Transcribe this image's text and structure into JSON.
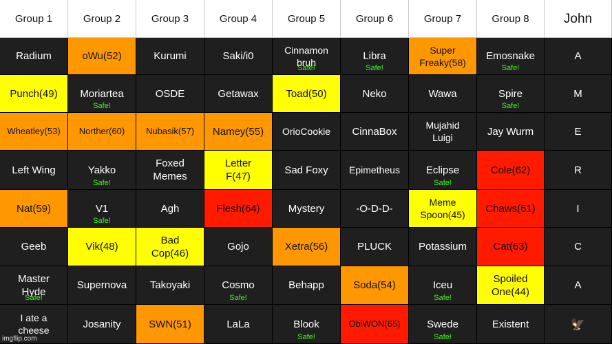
{
  "headers": [
    "Group 1",
    "Group 2",
    "Group 3",
    "Group 4",
    "Group 5",
    "Group 6",
    "Group 7",
    "Group 8",
    "John"
  ],
  "rows": [
    [
      {
        "name": "Radium",
        "color": "dark"
      },
      {
        "name": "oWu(52)",
        "color": "orange"
      },
      {
        "name": "Kurumi",
        "color": "dark"
      },
      {
        "name": "Saki/i0",
        "color": "dark"
      },
      {
        "name": "Cinnamon\nbruh",
        "color": "dark",
        "safe": "Safe!",
        "size": "mid"
      },
      {
        "name": "Libra",
        "color": "dark",
        "safe": "Safe!"
      },
      {
        "name": "Super\nFreaky(58)",
        "color": "orange",
        "size": "mid"
      },
      {
        "name": "Emosnake",
        "color": "dark",
        "safe": "Safe!"
      },
      {
        "name": "A",
        "color": "dark"
      }
    ],
    [
      {
        "name": "Punch(49)",
        "color": "yellow"
      },
      {
        "name": "Moriartea",
        "color": "dark",
        "safe": "Safe!"
      },
      {
        "name": "OSDE",
        "color": "dark"
      },
      {
        "name": "Getawax",
        "color": "dark"
      },
      {
        "name": "Toad(50)",
        "color": "yellow"
      },
      {
        "name": "Neko",
        "color": "dark"
      },
      {
        "name": "Wawa",
        "color": "dark"
      },
      {
        "name": "Spire",
        "color": "dark",
        "safe": "Safe!"
      },
      {
        "name": "M",
        "color": "dark"
      }
    ],
    [
      {
        "name": "Wheatley(53)",
        "color": "orange",
        "size": "small"
      },
      {
        "name": "Norther(60)",
        "color": "orange",
        "size": "small"
      },
      {
        "name": "Nubasik(57)",
        "color": "orange",
        "size": "small"
      },
      {
        "name": "Namey(55)",
        "color": "orange"
      },
      {
        "name": "OrioCookie",
        "color": "dark",
        "size": "mid"
      },
      {
        "name": "CinnaBox",
        "color": "dark"
      },
      {
        "name": "Mujahid\nLuigi",
        "color": "dark",
        "size": "mid"
      },
      {
        "name": "Jay Wurm",
        "color": "dark"
      },
      {
        "name": "E",
        "color": "dark"
      }
    ],
    [
      {
        "name": "Left Wing",
        "color": "dark"
      },
      {
        "name": "Yakko",
        "color": "dark",
        "safe": "Safe!"
      },
      {
        "name": "Foxed\nMemes",
        "color": "dark"
      },
      {
        "name": "Letter\nF(47)",
        "color": "yellow"
      },
      {
        "name": "Sad Foxy",
        "color": "dark"
      },
      {
        "name": "Epimetheus",
        "color": "dark",
        "size": "mid"
      },
      {
        "name": "Eclipse",
        "color": "dark",
        "safe": "Safe!"
      },
      {
        "name": "Cole(62)",
        "color": "red"
      },
      {
        "name": "R",
        "color": "dark"
      }
    ],
    [
      {
        "name": "Nat(59)",
        "color": "orange"
      },
      {
        "name": "V1",
        "color": "dark",
        "safe": "Safe!"
      },
      {
        "name": "Agh",
        "color": "dark"
      },
      {
        "name": "Flesh(64)",
        "color": "red"
      },
      {
        "name": "Mystery",
        "color": "dark"
      },
      {
        "name": "-O-D-D-",
        "color": "dark"
      },
      {
        "name": "Meme\nSpoon(45)",
        "color": "yellow",
        "size": "mid"
      },
      {
        "name": "Chaws(61)",
        "color": "red"
      },
      {
        "name": "I",
        "color": "dark"
      }
    ],
    [
      {
        "name": "Geeb",
        "color": "dark"
      },
      {
        "name": "Vik(48)",
        "color": "yellow"
      },
      {
        "name": "Bad\nCop(46)",
        "color": "yellow"
      },
      {
        "name": "Gojo",
        "color": "dark"
      },
      {
        "name": "Xetra(56)",
        "color": "orange"
      },
      {
        "name": "PLUCK",
        "color": "dark"
      },
      {
        "name": "Potassium",
        "color": "dark"
      },
      {
        "name": "Cat(63)",
        "color": "red"
      },
      {
        "name": "C",
        "color": "dark"
      }
    ],
    [
      {
        "name": "Master\nHyde",
        "color": "dark",
        "safe": "Safe!"
      },
      {
        "name": "Supernova",
        "color": "dark"
      },
      {
        "name": "Takoyaki",
        "color": "dark"
      },
      {
        "name": "Cosmo",
        "color": "dark",
        "safe": "Safe!"
      },
      {
        "name": "Behapp",
        "color": "dark"
      },
      {
        "name": "Soda(54)",
        "color": "orange"
      },
      {
        "name": "Iceu",
        "color": "dark",
        "safe": "Safe!"
      },
      {
        "name": "Spoiled\nOne(44)",
        "color": "yellow"
      },
      {
        "name": "A",
        "color": "dark"
      }
    ],
    [
      {
        "name": "I ate a\ncheese",
        "color": "dark",
        "size": "mid"
      },
      {
        "name": "Josanity",
        "color": "dark"
      },
      {
        "name": "SWN(51)",
        "color": "orange"
      },
      {
        "name": "LaLa",
        "color": "dark"
      },
      {
        "name": "Blook",
        "color": "dark",
        "safe": "Safe!"
      },
      {
        "name": "ObiWON(65)",
        "color": "red",
        "size": "small"
      },
      {
        "name": "Swede",
        "color": "dark",
        "safe": "Safe!"
      },
      {
        "name": "Existent",
        "color": "dark"
      },
      {
        "name": "🦅",
        "color": "dark",
        "icon": "eagle-icon"
      }
    ]
  ],
  "watermark": "imgflip.com",
  "colors": {
    "dark": "#1f1f1f",
    "orange": "#ff9800",
    "yellow": "#ffff00",
    "red": "#ff1a00",
    "safe": "#39ff14"
  }
}
